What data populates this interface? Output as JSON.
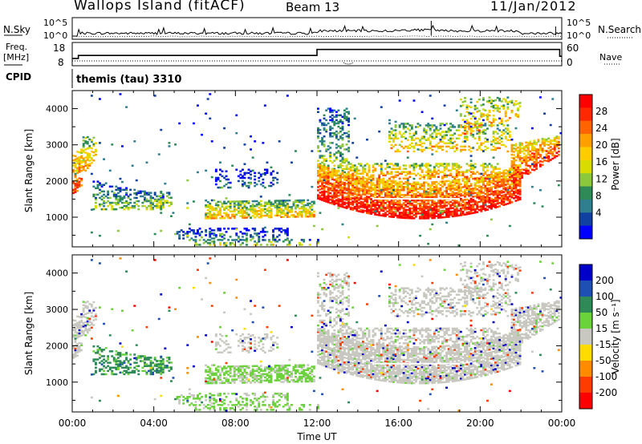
{
  "header": {
    "station": "Wallops Island (fitACF)",
    "beam": "Beam 13",
    "date": "11/Jan/2012"
  },
  "labels": {
    "nsky": "N.Sky",
    "nsearch": "N.Search",
    "freq": "Freq.",
    "mhz": "[MHz]",
    "nave": "Nave",
    "cpid": "CPID",
    "cpid_value": "themis (tau) 3310",
    "yaxis": "Slant Range [km]",
    "xaxis": "Time UT",
    "power_label": "Power [dB]",
    "velocity_label": "Velocity [m s⁻¹]"
  },
  "chart_data": [
    {
      "type": "line",
      "name": "noise",
      "left_ticks": [
        "10^5",
        "10^0"
      ],
      "right_ticks": [
        "10^5",
        "10^0"
      ]
    },
    {
      "type": "line",
      "name": "frequency-nave",
      "left_ticks": [
        "18",
        "8"
      ],
      "right_ticks": [
        "60",
        "0"
      ],
      "frequency_steps": [
        {
          "t": 0,
          "mhz": 10.4
        },
        {
          "t": 0.3,
          "mhz": 12.6
        },
        {
          "t": 12,
          "mhz": 17.0
        },
        {
          "t": 23.9,
          "mhz": 12.0
        }
      ]
    },
    {
      "type": "heatmap",
      "name": "power",
      "x_ticks": [
        "00:00",
        "04:00",
        "08:00",
        "12:00",
        "16:00",
        "20:00",
        "00:00"
      ],
      "y_ticks": [
        "1000",
        "2000",
        "3000",
        "4000"
      ],
      "ylim": [
        180,
        4500
      ],
      "colorbar_ticks": [
        "28",
        "24",
        "20",
        "16",
        "12",
        "8",
        "4"
      ],
      "colorbar_colors": [
        "#ff0000",
        "#ff2800",
        "#ff6400",
        "#ffa000",
        "#ffcc00",
        "#d8dc00",
        "#8cc83c",
        "#2e8b57",
        "#2f7f8f",
        "#1040a0",
        "#0000ff"
      ]
    },
    {
      "type": "heatmap",
      "name": "velocity",
      "x_ticks": [
        "00:00",
        "04:00",
        "08:00",
        "12:00",
        "16:00",
        "20:00",
        "00:00"
      ],
      "y_ticks": [
        "1000",
        "2000",
        "3000",
        "4000"
      ],
      "ylim": [
        180,
        4500
      ],
      "colorbar_ticks": [
        "200",
        "100",
        "50",
        "15",
        "-15",
        "-50",
        "-100",
        "-200"
      ],
      "colorbar_colors": [
        "#0000c8",
        "#1e50b4",
        "#2e8b57",
        "#6cd23c",
        "#c8c8c0",
        "#ffdc00",
        "#ff8c00",
        "#ff3c00",
        "#ff0000"
      ]
    }
  ]
}
